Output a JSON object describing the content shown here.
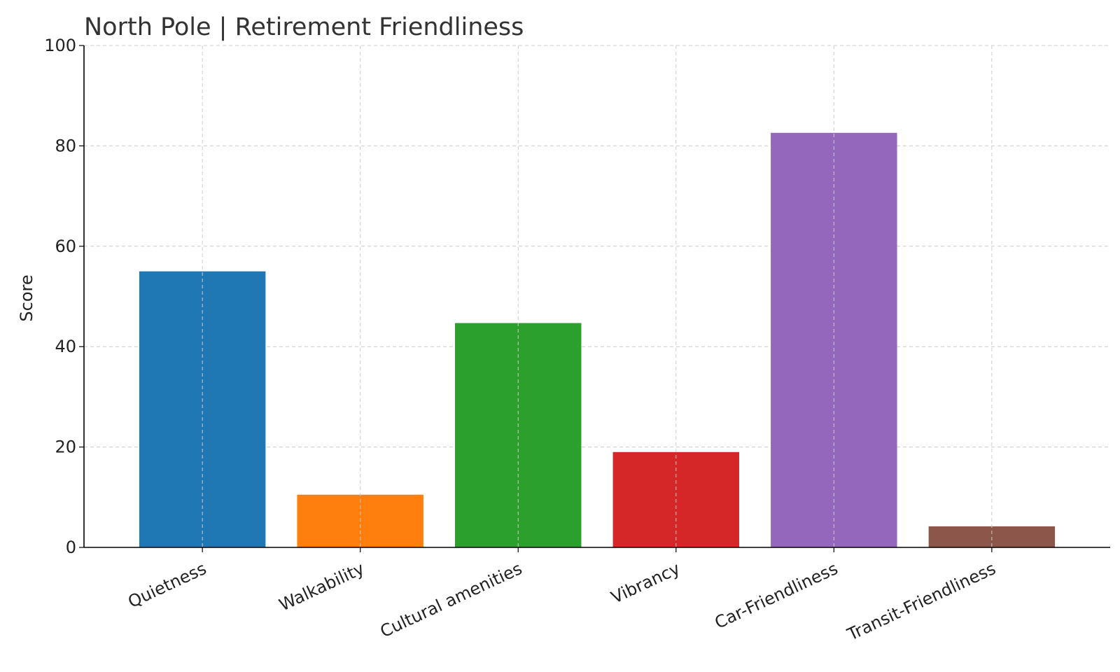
{
  "chart_data": {
    "type": "bar",
    "title": "North Pole | Retirement Friendliness",
    "xlabel": "",
    "ylabel": "Score",
    "ylim": [
      0,
      100
    ],
    "yticks": [
      0,
      20,
      40,
      60,
      80,
      100
    ],
    "grid": true,
    "categories": [
      "Quietness",
      "Walkability",
      "Cultural amenities",
      "Vibrancy",
      "Car-Friendliness",
      "Transit-Friendliness"
    ],
    "values": [
      55,
      10.5,
      44.7,
      19,
      82.6,
      4.2
    ],
    "colors": [
      "#1f77b4",
      "#ff7f0e",
      "#2ca02c",
      "#d62728",
      "#9467bd",
      "#8c564b"
    ]
  }
}
